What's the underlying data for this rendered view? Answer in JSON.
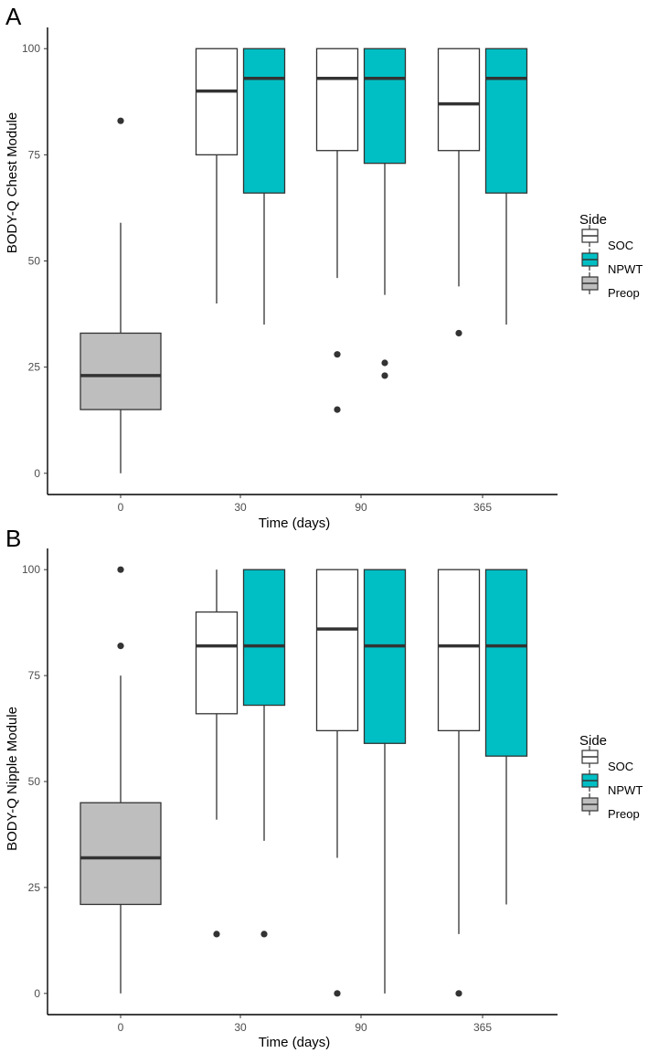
{
  "chart_data": [
    {
      "type": "box",
      "panel_label": "A",
      "title": "",
      "xlabel": "Time (days)",
      "ylabel": "BODY-Q Chest Module",
      "ylim": [
        -5,
        105
      ],
      "yticks": [
        0,
        25,
        50,
        75,
        100
      ],
      "categories": [
        "0",
        "30",
        "90",
        "365"
      ],
      "legend": {
        "title": "Side",
        "position": "right",
        "entries": [
          "SOC",
          "NPWT",
          "Preop"
        ]
      },
      "series": [
        {
          "name": "Preop",
          "color": "#bebebe",
          "boxes": [
            {
              "category": "0",
              "whisker_low": 0,
              "q1": 15,
              "median": 23,
              "q3": 33,
              "whisker_high": 59,
              "outliers": [
                83
              ]
            }
          ]
        },
        {
          "name": "SOC",
          "color": "#ffffff",
          "boxes": [
            {
              "category": "30",
              "whisker_low": 40,
              "q1": 75,
              "median": 90,
              "q3": 100,
              "whisker_high": 100,
              "outliers": []
            },
            {
              "category": "90",
              "whisker_low": 46,
              "q1": 76,
              "median": 93,
              "q3": 100,
              "whisker_high": 100,
              "outliers": [
                28,
                15
              ]
            },
            {
              "category": "365",
              "whisker_low": 44,
              "q1": 76,
              "median": 87,
              "q3": 100,
              "whisker_high": 100,
              "outliers": [
                33
              ]
            }
          ]
        },
        {
          "name": "NPWT",
          "color": "#00bfc4",
          "boxes": [
            {
              "category": "30",
              "whisker_low": 35,
              "q1": 66,
              "median": 93,
              "q3": 100,
              "whisker_high": 100,
              "outliers": []
            },
            {
              "category": "90",
              "whisker_low": 42,
              "q1": 73,
              "median": 93,
              "q3": 100,
              "whisker_high": 100,
              "outliers": [
                26,
                23
              ]
            },
            {
              "category": "365",
              "whisker_low": 35,
              "q1": 66,
              "median": 93,
              "q3": 100,
              "whisker_high": 100,
              "outliers": []
            }
          ]
        }
      ]
    },
    {
      "type": "box",
      "panel_label": "B",
      "title": "",
      "xlabel": "Time (days)",
      "ylabel": "BODY-Q Nipple Module",
      "ylim": [
        -5,
        105
      ],
      "yticks": [
        0,
        25,
        50,
        75,
        100
      ],
      "categories": [
        "0",
        "30",
        "90",
        "365"
      ],
      "legend": {
        "title": "Side",
        "position": "right",
        "entries": [
          "SOC",
          "NPWT",
          "Preop"
        ]
      },
      "series": [
        {
          "name": "Preop",
          "color": "#bebebe",
          "boxes": [
            {
              "category": "0",
              "whisker_low": 0,
              "q1": 21,
              "median": 32,
              "q3": 45,
              "whisker_high": 75,
              "outliers": [
                100,
                82
              ]
            }
          ]
        },
        {
          "name": "SOC",
          "color": "#ffffff",
          "boxes": [
            {
              "category": "30",
              "whisker_low": 41,
              "q1": 66,
              "median": 82,
              "q3": 90,
              "whisker_high": 100,
              "outliers": [
                14
              ]
            },
            {
              "category": "90",
              "whisker_low": 32,
              "q1": 62,
              "median": 86,
              "q3": 100,
              "whisker_high": 100,
              "outliers": [
                0
              ]
            },
            {
              "category": "365",
              "whisker_low": 14,
              "q1": 62,
              "median": 82,
              "q3": 100,
              "whisker_high": 100,
              "outliers": [
                0
              ]
            }
          ]
        },
        {
          "name": "NPWT",
          "color": "#00bfc4",
          "boxes": [
            {
              "category": "30",
              "whisker_low": 36,
              "q1": 68,
              "median": 82,
              "q3": 100,
              "whisker_high": 100,
              "outliers": [
                14
              ]
            },
            {
              "category": "90",
              "whisker_low": 0,
              "q1": 59,
              "median": 82,
              "q3": 100,
              "whisker_high": 100,
              "outliers": []
            },
            {
              "category": "365",
              "whisker_low": 21,
              "q1": 56,
              "median": 82,
              "q3": 100,
              "whisker_high": 100,
              "outliers": []
            }
          ]
        }
      ]
    }
  ]
}
